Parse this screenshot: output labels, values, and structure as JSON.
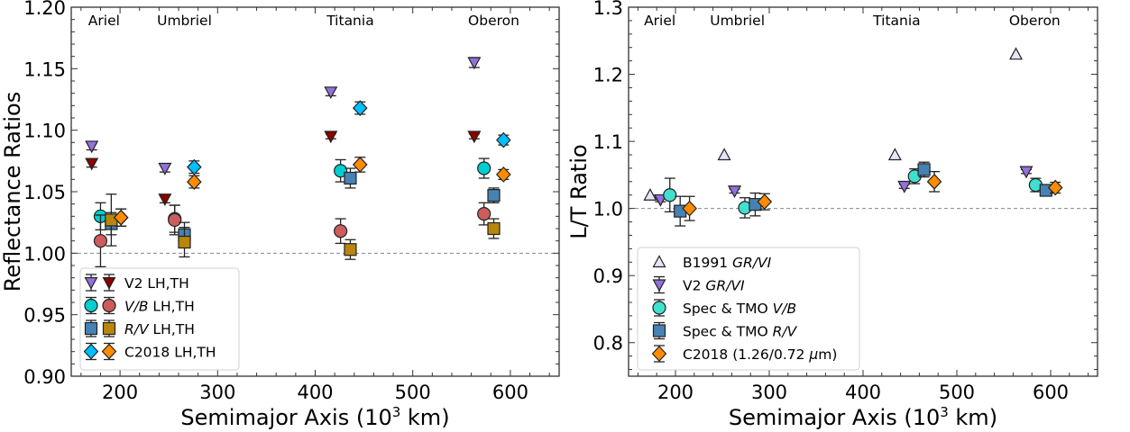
{
  "chart_data": [
    {
      "type": "scatter",
      "title": "",
      "xlabel": "Semimajor Axis (10^3 km)",
      "xlabel_main": "Semimajor Axis (10",
      "xlabel_sup": "3",
      "xlabel_tail": " km)",
      "ylabel": "Reflectance Ratios",
      "xlim": [
        150,
        650
      ],
      "ylim": [
        0.9,
        1.2
      ],
      "xticks": [
        200,
        300,
        400,
        500,
        600
      ],
      "xtick_labels": [
        "200",
        "300",
        "400",
        "500",
        "600"
      ],
      "yticks": [
        0.9,
        0.95,
        1.0,
        1.05,
        1.1,
        1.15,
        1.2
      ],
      "ytick_labels": [
        "0.90",
        "0.95",
        "1.00",
        "1.05",
        "1.10",
        "1.15",
        "1.20"
      ],
      "reference_line": 1.0,
      "grid": false,
      "legend_position": "lower-left",
      "moons": [
        {
          "name": "Ariel",
          "x": 191
        },
        {
          "name": "Umbriel",
          "x": 266
        },
        {
          "name": "Titania",
          "x": 436
        },
        {
          "name": "Oberon",
          "x": 583
        }
      ],
      "legend": [
        {
          "label": "V2 LH,TH",
          "italic_part": "",
          "plain_part": "V2 LH,TH",
          "markers": [
            "v2_lh",
            "v2_th"
          ]
        },
        {
          "label": "V/B LH,TH",
          "italic_part": "V/B",
          "plain_part": " LH,TH",
          "markers": [
            "vb_lh",
            "vb_th"
          ]
        },
        {
          "label": "R/V LH,TH",
          "italic_part": "R/V",
          "plain_part": " LH,TH",
          "markers": [
            "rv_lh",
            "rv_th"
          ]
        },
        {
          "label": "C2018 LH,TH",
          "italic_part": "",
          "plain_part": "C2018 LH,TH",
          "markers": [
            "c2018_lh",
            "c2018_th"
          ]
        }
      ],
      "series": [
        {
          "id": "v2_lh",
          "name": "V2 LH",
          "marker": "triangle-down",
          "color": "#9370DB",
          "x": [
            171,
            246,
            416,
            563
          ],
          "y": [
            1.087,
            1.069,
            1.131,
            1.155
          ],
          "yerr": [
            0.003,
            0.003,
            0.003,
            0.004
          ]
        },
        {
          "id": "v2_th",
          "name": "V2 TH",
          "marker": "triangle-down",
          "color": "#8B0000",
          "x": [
            171,
            246,
            416,
            563
          ],
          "y": [
            1.073,
            1.044,
            1.095,
            1.095
          ],
          "yerr": [
            0.003,
            0.003,
            0.002,
            0.002
          ]
        },
        {
          "id": "vb_lh",
          "name": "V/B LH",
          "marker": "circle",
          "color": "#00CED1",
          "x": [
            180,
            256,
            426,
            573
          ],
          "y": [
            1.03,
            1.028,
            1.067,
            1.069
          ],
          "yerr": [
            0.011,
            0.011,
            0.009,
            0.008
          ]
        },
        {
          "id": "vb_th",
          "name": "V/B TH",
          "marker": "circle",
          "color": "#CD5C5C",
          "x": [
            180,
            256,
            426,
            573
          ],
          "y": [
            1.01,
            1.027,
            1.018,
            1.032
          ],
          "yerr": [
            0.021,
            0.012,
            0.01,
            0.009
          ]
        },
        {
          "id": "rv_lh",
          "name": "R/V LH",
          "marker": "square",
          "color": "#4682B4",
          "x": [
            191,
            266,
            436,
            583
          ],
          "y": [
            1.024,
            1.015,
            1.061,
            1.047
          ],
          "yerr": [
            0.009,
            0.01,
            0.008,
            0.006
          ]
        },
        {
          "id": "rv_th",
          "name": "R/V TH",
          "marker": "square",
          "color": "#B8860B",
          "x": [
            191,
            266,
            436,
            583
          ],
          "y": [
            1.027,
            1.009,
            1.003,
            1.02
          ],
          "yerr": [
            0.021,
            0.012,
            0.008,
            0.008
          ]
        },
        {
          "id": "c2018_lh",
          "name": "C2018 LH",
          "marker": "diamond",
          "color": "#00BFFF",
          "x": [
            201,
            276,
            446,
            593
          ],
          "y": [
            1.029,
            1.07,
            1.118,
            1.092
          ],
          "yerr": [
            0.007,
            0.005,
            0.005,
            0.004
          ]
        },
        {
          "id": "c2018_th",
          "name": "C2018 TH",
          "marker": "diamond",
          "color": "#FF8C00",
          "x": [
            201,
            276,
            446,
            593
          ],
          "y": [
            1.029,
            1.058,
            1.072,
            1.064
          ],
          "yerr": [
            0.007,
            0.005,
            0.006,
            0.004
          ]
        }
      ]
    },
    {
      "type": "scatter",
      "title": "",
      "xlabel": "Semimajor Axis (10^3 km)",
      "xlabel_main": "Semimajor Axis (10",
      "xlabel_sup": "3",
      "xlabel_tail": " km)",
      "ylabel": "L/T Ratio",
      "xlim": [
        150,
        650
      ],
      "ylim": [
        0.75,
        1.3
      ],
      "xticks": [
        200,
        300,
        400,
        500,
        600
      ],
      "xtick_labels": [
        "200",
        "300",
        "400",
        "500",
        "600"
      ],
      "yticks": [
        0.8,
        0.9,
        1.0,
        1.1,
        1.2,
        1.3
      ],
      "ytick_labels": [
        "0.8",
        "0.9",
        "1.0",
        "1.1",
        "1.2",
        "1.3"
      ],
      "reference_line": 1.0,
      "grid": false,
      "legend_position": "lower-left",
      "moons": [
        {
          "name": "Ariel",
          "x": 191
        },
        {
          "name": "Umbriel",
          "x": 266
        },
        {
          "name": "Titania",
          "x": 436
        },
        {
          "name": "Oberon",
          "x": 583
        }
      ],
      "legend": [
        {
          "label": "B1991 GR/VI",
          "plain_part": "B1991 ",
          "italic_part": "GR/VI",
          "tail": "",
          "markers": [
            "b1991"
          ]
        },
        {
          "label": "V2 GR/VI",
          "plain_part": "V2 ",
          "italic_part": "GR/VI",
          "tail": "",
          "markers": [
            "v2"
          ]
        },
        {
          "label": "Spec & TMO V/B",
          "plain_part": "Spec & TMO ",
          "italic_part": "V/B",
          "tail": "",
          "markers": [
            "vb"
          ]
        },
        {
          "label": "Spec & TMO R/V",
          "plain_part": "Spec & TMO ",
          "italic_part": "R/V",
          "tail": "",
          "markers": [
            "rv"
          ]
        },
        {
          "label": "C2018 (1.26/0.72 μm)",
          "plain_part": "C2018 (1.26/0.72 ",
          "italic_part": "μ",
          "tail": "m)",
          "markers": [
            "c2018"
          ]
        }
      ],
      "series": [
        {
          "id": "b1991",
          "name": "B1991 GR/VI",
          "marker": "triangle-up",
          "color": "#E6E6FA",
          "x": [
            173,
            252,
            434,
            563
          ],
          "y": [
            1.02,
            1.08,
            1.08,
            1.23
          ],
          "yerr": [
            0,
            0,
            0,
            0
          ]
        },
        {
          "id": "v2",
          "name": "V2 GR/VI",
          "marker": "triangle-down",
          "color": "#9370DB",
          "x": [
            184,
            263,
            444,
            574
          ],
          "y": [
            1.013,
            1.026,
            1.033,
            1.055
          ],
          "yerr": [
            0.003,
            0.003,
            0.003,
            0.003
          ]
        },
        {
          "id": "vb",
          "name": "Spec & TMO V/B",
          "marker": "circle",
          "color": "#40E0D0",
          "x": [
            194,
            274,
            455,
            584
          ],
          "y": [
            1.02,
            1.001,
            1.048,
            1.035
          ],
          "yerr": [
            0.025,
            0.015,
            0.011,
            0.01
          ]
        },
        {
          "id": "rv",
          "name": "Spec & TMO R/V",
          "marker": "square",
          "color": "#4682B4",
          "x": [
            205,
            285,
            465,
            595
          ],
          "y": [
            0.996,
            1.006,
            1.058,
            1.027
          ],
          "yerr": [
            0.022,
            0.017,
            0.011,
            0.008
          ]
        },
        {
          "id": "c2018",
          "name": "C2018 (1.26/0.72 μm)",
          "marker": "diamond",
          "color": "#FF8C00",
          "x": [
            215,
            295,
            476,
            605
          ],
          "y": [
            1.0,
            1.01,
            1.04,
            1.031
          ],
          "yerr": [
            0.018,
            0.012,
            0.015,
            0.008
          ]
        }
      ]
    }
  ]
}
